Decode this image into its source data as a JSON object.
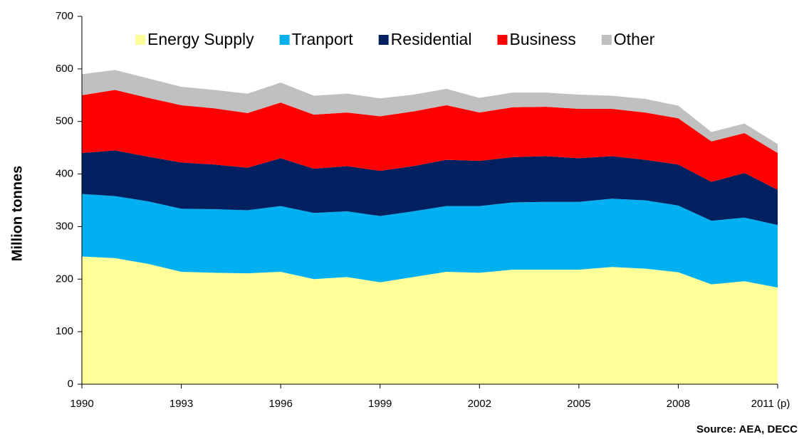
{
  "chart_data": {
    "type": "stacked-area",
    "y_label": "Million tonnes",
    "source": "Source: AEA, DECC",
    "x": [
      1990,
      1991,
      1992,
      1993,
      1994,
      1995,
      1996,
      1997,
      1998,
      1999,
      2000,
      2001,
      2002,
      2003,
      2004,
      2005,
      2006,
      2007,
      2008,
      2009,
      2010,
      2011
    ],
    "xlim": [
      1990,
      2011
    ],
    "xticks": [
      1990,
      1993,
      1996,
      1999,
      2002,
      2005,
      2008,
      {
        "value": 2011,
        "label": "2011 (p)"
      }
    ],
    "ylim": [
      0,
      700
    ],
    "yticks": [
      0,
      100,
      200,
      300,
      400,
      500,
      600,
      700
    ],
    "series": [
      {
        "name": "Energy Supply",
        "color": "#ffff99",
        "values": [
          243,
          240,
          229,
          214,
          212,
          211,
          214,
          200,
          204,
          194,
          204,
          214,
          212,
          218,
          218,
          218,
          223,
          220,
          213,
          190,
          196,
          184
        ]
      },
      {
        "name": "Tranport",
        "color": "#00b0f0",
        "values": [
          119,
          118,
          119,
          120,
          121,
          120,
          125,
          126,
          125,
          126,
          125,
          125,
          127,
          128,
          129,
          129,
          130,
          130,
          127,
          121,
          121,
          119
        ]
      },
      {
        "name": "Residential",
        "color": "#002060",
        "values": [
          78,
          87,
          85,
          88,
          85,
          81,
          91,
          84,
          86,
          86,
          86,
          88,
          86,
          86,
          87,
          83,
          81,
          77,
          78,
          74,
          85,
          67
        ]
      },
      {
        "name": "Business",
        "color": "#ff0000",
        "values": [
          110,
          115,
          112,
          109,
          107,
          104,
          106,
          103,
          102,
          104,
          104,
          104,
          92,
          95,
          94,
          94,
          90,
          90,
          88,
          77,
          76,
          70
        ]
      },
      {
        "name": "Other",
        "color": "#c0c0c0",
        "values": [
          40,
          38,
          37,
          35,
          35,
          37,
          38,
          36,
          36,
          34,
          32,
          31,
          28,
          28,
          27,
          27,
          25,
          26,
          24,
          18,
          18,
          17
        ]
      }
    ]
  }
}
